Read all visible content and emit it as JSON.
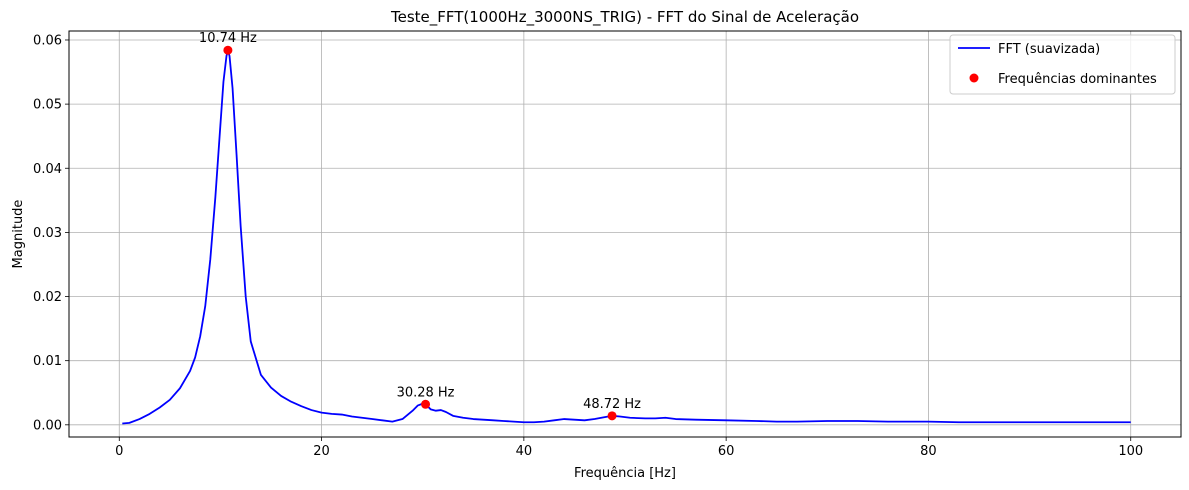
{
  "chart_data": {
    "type": "line",
    "title": "Teste_FFT(1000Hz_3000NS_TRIG) - FFT do Sinal de Aceleração",
    "xlabel": "Frequência [Hz]",
    "ylabel": "Magnitude",
    "xlim": [
      -4.97,
      104.97
    ],
    "ylim": [
      -0.0019,
      0.0614
    ],
    "grid": true,
    "legend_position": "top-right",
    "x_ticks": [
      0,
      20,
      40,
      60,
      80,
      100
    ],
    "x_tick_labels": [
      "0",
      "20",
      "40",
      "60",
      "80",
      "100"
    ],
    "y_ticks": [
      0.0,
      0.01,
      0.02,
      0.03,
      0.04,
      0.05,
      0.06
    ],
    "y_tick_labels": [
      "0.00",
      "0.01",
      "0.02",
      "0.03",
      "0.04",
      "0.05",
      "0.06"
    ],
    "series": [
      {
        "name": "FFT (suavizada)",
        "color": "#0000ff",
        "style": "line",
        "x": [
          0.3,
          1,
          2,
          3,
          4,
          5,
          6,
          7,
          7.5,
          8,
          8.5,
          9,
          9.5,
          10,
          10.3,
          10.6,
          10.74,
          10.9,
          11.2,
          11.6,
          12,
          12.5,
          13,
          14,
          15,
          16,
          17,
          18,
          19,
          20,
          21,
          22,
          23,
          24,
          25,
          26,
          27,
          28,
          29,
          29.5,
          30,
          30.28,
          30.8,
          31.3,
          31.8,
          32.3,
          33,
          34,
          35,
          36,
          37,
          38,
          39,
          40,
          41,
          42,
          43,
          44,
          45,
          46,
          47,
          48,
          48.72,
          49.5,
          50.5,
          52,
          53,
          54,
          55,
          57,
          60,
          63,
          65,
          67,
          70,
          73,
          76,
          80,
          83,
          86,
          90,
          95,
          100
        ],
        "y": [
          0.0002,
          0.0003,
          0.0009,
          0.0017,
          0.0027,
          0.0039,
          0.0057,
          0.0084,
          0.0105,
          0.0138,
          0.0185,
          0.0258,
          0.0355,
          0.0468,
          0.0535,
          0.0575,
          0.0584,
          0.0575,
          0.0525,
          0.042,
          0.031,
          0.02,
          0.013,
          0.0078,
          0.0058,
          0.0045,
          0.0036,
          0.0029,
          0.0023,
          0.0019,
          0.0017,
          0.0016,
          0.0013,
          0.0011,
          0.0009,
          0.0007,
          0.0005,
          0.0009,
          0.0022,
          0.003,
          0.0033,
          0.0032,
          0.0024,
          0.0022,
          0.0023,
          0.002,
          0.0014,
          0.0011,
          0.0009,
          0.0008,
          0.0007,
          0.0006,
          0.0005,
          0.0004,
          0.0004,
          0.0005,
          0.0007,
          0.0009,
          0.0008,
          0.0007,
          0.0009,
          0.0012,
          0.0014,
          0.0013,
          0.0011,
          0.001,
          0.001,
          0.0011,
          0.0009,
          0.0008,
          0.0007,
          0.0006,
          0.0005,
          0.0005,
          0.0006,
          0.0006,
          0.0005,
          0.0005,
          0.0004,
          0.0004,
          0.0004,
          0.0004,
          0.0004
        ]
      },
      {
        "name": "Frequências dominantes",
        "color": "#ff0000",
        "style": "points",
        "x": [
          10.74,
          30.28,
          48.72
        ],
        "y": [
          0.0584,
          0.0032,
          0.0014
        ],
        "labels": [
          "10.74 Hz",
          "30.28 Hz",
          "48.72 Hz"
        ]
      }
    ]
  }
}
